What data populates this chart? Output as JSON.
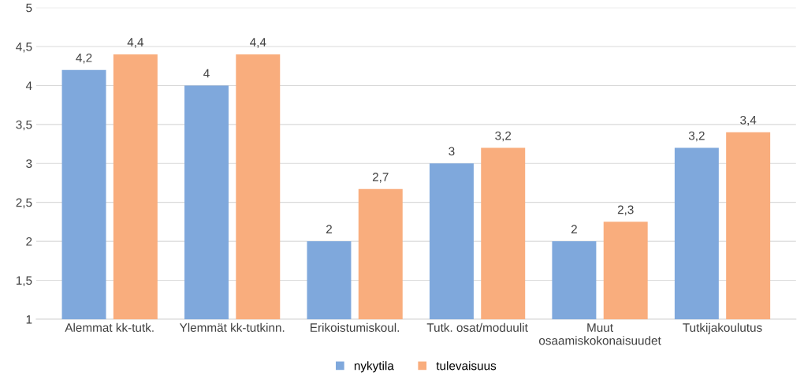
{
  "chart_data": {
    "type": "bar",
    "categories": [
      "Alemmat kk-tutk.",
      "Ylemmät kk-tutkinn.",
      "Erikoistumiskoul.",
      "Tutk. osat/moduulit",
      "Muut\nosaamiskokonaisuudet",
      "Tutkijakoulutus"
    ],
    "series": [
      {
        "name": "nykytila",
        "color": "#7fa8dc",
        "values": [
          4.2,
          4,
          2,
          3,
          2,
          3.2
        ],
        "value_labels": [
          "4,2",
          "4",
          "2",
          "3",
          "2",
          "3,2"
        ]
      },
      {
        "name": "tulevaisuus",
        "color": "#f9ad7d",
        "values": [
          4.4,
          4.4,
          2.67,
          3.2,
          2.25,
          3.4
        ],
        "value_labels": [
          "4,4",
          "4,4",
          "2,7",
          "3,2",
          "2,3",
          "3,4"
        ]
      }
    ],
    "ylim": [
      1,
      5
    ],
    "yticks": [
      1,
      {
        "value": 1.5,
        "label": "1,5"
      },
      2,
      {
        "value": 2.5,
        "label": "2,5"
      },
      3,
      {
        "value": 3.5,
        "label": "3,5"
      },
      4,
      {
        "value": 4.5,
        "label": "4,5"
      },
      5
    ],
    "grid": "y",
    "legend": "bottom"
  }
}
